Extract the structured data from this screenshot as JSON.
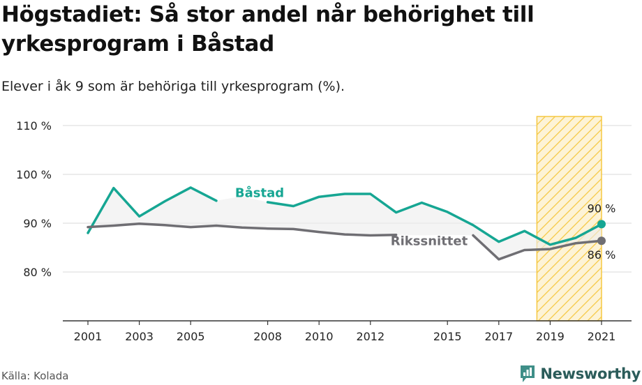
{
  "header": {
    "title": "Högstadiet: Så stor andel når behörighet till yrkesprogram i Båstad",
    "subtitle": "Elever i åk 9 som är behöriga till yrkesprogram (%)."
  },
  "footer": {
    "source": "Källa: Kolada",
    "brand": "Newsworthy"
  },
  "colors": {
    "bastad": "#16a693",
    "riket": "#6f6e73",
    "highlight": "#f5c842",
    "grid": "#d9d9d9",
    "area": "#ececec"
  },
  "chart_data": {
    "type": "line",
    "x": [
      2001,
      2002,
      2003,
      2004,
      2005,
      2006,
      2007,
      2008,
      2009,
      2010,
      2011,
      2012,
      2013,
      2014,
      2015,
      2016,
      2017,
      2018,
      2019,
      2020,
      2021
    ],
    "series": [
      {
        "name": "Båstad",
        "values": [
          88.0,
          97.2,
          91.4,
          94.5,
          97.3,
          94.6,
          95.5,
          94.3,
          93.5,
          95.4,
          96.0,
          96.0,
          92.2,
          94.2,
          92.3,
          89.6,
          86.2,
          88.4,
          85.6,
          87.0,
          89.8
        ]
      },
      {
        "name": "Rikssnittet",
        "values": [
          89.2,
          89.5,
          89.9,
          89.6,
          89.2,
          89.5,
          89.1,
          88.9,
          88.8,
          88.2,
          87.7,
          87.5,
          87.6,
          87.5,
          87.6,
          87.5,
          82.6,
          84.5,
          84.7,
          85.9,
          86.4
        ]
      }
    ],
    "yticks": [
      80,
      90,
      100,
      110
    ],
    "ytick_labels": [
      "80 %",
      "90 %",
      "100 %",
      "110 %"
    ],
    "xticks": [
      2001,
      2003,
      2005,
      2008,
      2010,
      2012,
      2015,
      2017,
      2019,
      2021
    ],
    "xtick_labels": [
      "2001",
      "2003",
      "2005",
      "2008",
      "2010",
      "2012",
      "2015",
      "2017",
      "2019",
      "2021"
    ],
    "end_labels": {
      "bastad": "90 %",
      "riket": "86 %"
    },
    "highlight_range": [
      2019,
      2021
    ],
    "ylim": [
      70,
      112
    ],
    "grid": true,
    "legend": "inline"
  }
}
